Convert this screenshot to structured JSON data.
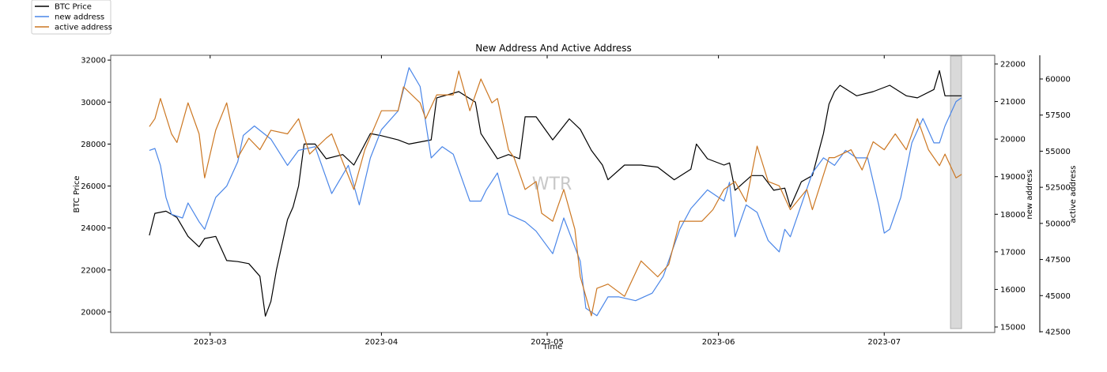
{
  "chart_data": {
    "type": "line",
    "title": "New Address And Active Address",
    "xlabel": "Time",
    "ylabel": "BTC Price",
    "y2label": "new address",
    "y3label": "active address",
    "watermark": "WTR",
    "xlim": [
      "2023-02-11",
      "2023-07-21"
    ],
    "ylim": [
      19020,
      32230
    ],
    "y2lim": [
      14853,
      22231
    ],
    "y3lim": [
      42445,
      61640
    ],
    "x_ticks": [
      "2023-03-01",
      "2023-04-01",
      "2023-05-01",
      "2023-06-01",
      "2023-07-01"
    ],
    "x_tick_labels": [
      "2023-03",
      "2023-04",
      "2023-05",
      "2023-06",
      "2023-07"
    ],
    "y_ticks": [
      20000,
      22000,
      24000,
      26000,
      28000,
      30000,
      32000
    ],
    "y2_ticks": [
      15000,
      16000,
      17000,
      18000,
      19000,
      20000,
      21000,
      22000
    ],
    "y3_ticks": [
      42500,
      45000,
      47500,
      50000,
      52500,
      55000,
      57500,
      60000
    ],
    "grid": false,
    "legend": {
      "placement": "top-left, outside figure",
      "entries": [
        "BTC Price",
        "new address",
        "active address"
      ]
    },
    "highlight": {
      "start": "2023-07-13",
      "end": "2023-07-15",
      "color": "#d9d9d9"
    },
    "series": [
      {
        "name": "BTC Price",
        "axis": "y",
        "color": "#000000",
        "points": [
          [
            "2023-02-18",
            23650
          ],
          [
            "2023-02-19",
            24700
          ],
          [
            "2023-02-21",
            24800
          ],
          [
            "2023-02-23",
            24500
          ],
          [
            "2023-02-25",
            23600
          ],
          [
            "2023-02-27",
            23100
          ],
          [
            "2023-02-28",
            23500
          ],
          [
            "2023-03-02",
            23600
          ],
          [
            "2023-03-04",
            22450
          ],
          [
            "2023-03-06",
            22400
          ],
          [
            "2023-03-08",
            22300
          ],
          [
            "2023-03-10",
            21700
          ],
          [
            "2023-03-11",
            19800
          ],
          [
            "2023-03-12",
            20500
          ],
          [
            "2023-03-13",
            22000
          ],
          [
            "2023-03-15",
            24400
          ],
          [
            "2023-03-16",
            25000
          ],
          [
            "2023-03-17",
            26000
          ],
          [
            "2023-03-18",
            28000
          ],
          [
            "2023-03-20",
            28000
          ],
          [
            "2023-03-22",
            27300
          ],
          [
            "2023-03-25",
            27500
          ],
          [
            "2023-03-27",
            27000
          ],
          [
            "2023-03-30",
            28500
          ],
          [
            "2023-04-01",
            28400
          ],
          [
            "2023-04-04",
            28200
          ],
          [
            "2023-04-06",
            28000
          ],
          [
            "2023-04-10",
            28200
          ],
          [
            "2023-04-11",
            30200
          ],
          [
            "2023-04-15",
            30500
          ],
          [
            "2023-04-18",
            30000
          ],
          [
            "2023-04-19",
            28500
          ],
          [
            "2023-04-22",
            27300
          ],
          [
            "2023-04-24",
            27500
          ],
          [
            "2023-04-26",
            27300
          ],
          [
            "2023-04-27",
            29300
          ],
          [
            "2023-04-29",
            29300
          ],
          [
            "2023-05-02",
            28200
          ],
          [
            "2023-05-05",
            29200
          ],
          [
            "2023-05-07",
            28700
          ],
          [
            "2023-05-09",
            27700
          ],
          [
            "2023-05-11",
            27000
          ],
          [
            "2023-05-12",
            26300
          ],
          [
            "2023-05-15",
            27000
          ],
          [
            "2023-05-18",
            27000
          ],
          [
            "2023-05-21",
            26900
          ],
          [
            "2023-05-24",
            26300
          ],
          [
            "2023-05-27",
            26800
          ],
          [
            "2023-05-28",
            28000
          ],
          [
            "2023-05-30",
            27300
          ],
          [
            "2023-06-02",
            27000
          ],
          [
            "2023-06-03",
            27100
          ],
          [
            "2023-06-04",
            25800
          ],
          [
            "2023-06-07",
            26500
          ],
          [
            "2023-06-09",
            26500
          ],
          [
            "2023-06-11",
            25800
          ],
          [
            "2023-06-13",
            25900
          ],
          [
            "2023-06-14",
            25000
          ],
          [
            "2023-06-16",
            26200
          ],
          [
            "2023-06-18",
            26500
          ],
          [
            "2023-06-19",
            27500
          ],
          [
            "2023-06-20",
            28500
          ],
          [
            "2023-06-21",
            29900
          ],
          [
            "2023-06-22",
            30500
          ],
          [
            "2023-06-23",
            30800
          ],
          [
            "2023-06-26",
            30300
          ],
          [
            "2023-06-29",
            30500
          ],
          [
            "2023-07-02",
            30800
          ],
          [
            "2023-07-05",
            30300
          ],
          [
            "2023-07-07",
            30200
          ],
          [
            "2023-07-10",
            30600
          ],
          [
            "2023-07-11",
            31500
          ],
          [
            "2023-07-12",
            30300
          ],
          [
            "2023-07-15",
            30300
          ]
        ]
      },
      {
        "name": "new address",
        "axis": "y2",
        "color": "#4a86e8",
        "points": [
          [
            "2023-02-18",
            19700
          ],
          [
            "2023-02-19",
            19750
          ],
          [
            "2023-02-20",
            19300
          ],
          [
            "2023-02-21",
            18450
          ],
          [
            "2023-02-22",
            18000
          ],
          [
            "2023-02-24",
            17900
          ],
          [
            "2023-02-25",
            18300
          ],
          [
            "2023-02-27",
            17800
          ],
          [
            "2023-02-28",
            17600
          ],
          [
            "2023-03-02",
            18450
          ],
          [
            "2023-03-04",
            18750
          ],
          [
            "2023-03-06",
            19400
          ],
          [
            "2023-03-07",
            20100
          ],
          [
            "2023-03-09",
            20350
          ],
          [
            "2023-03-12",
            20000
          ],
          [
            "2023-03-15",
            19300
          ],
          [
            "2023-03-17",
            19700
          ],
          [
            "2023-03-20",
            19800
          ],
          [
            "2023-03-23",
            18550
          ],
          [
            "2023-03-26",
            19300
          ],
          [
            "2023-03-28",
            18250
          ],
          [
            "2023-03-30",
            19500
          ],
          [
            "2023-04-01",
            20250
          ],
          [
            "2023-04-04",
            20750
          ],
          [
            "2023-04-06",
            21900
          ],
          [
            "2023-04-08",
            21400
          ],
          [
            "2023-04-10",
            19500
          ],
          [
            "2023-04-12",
            19800
          ],
          [
            "2023-04-14",
            19600
          ],
          [
            "2023-04-17",
            18350
          ],
          [
            "2023-04-19",
            18350
          ],
          [
            "2023-04-20",
            18650
          ],
          [
            "2023-04-22",
            19100
          ],
          [
            "2023-04-24",
            18000
          ],
          [
            "2023-04-27",
            17800
          ],
          [
            "2023-04-29",
            17550
          ],
          [
            "2023-05-02",
            16950
          ],
          [
            "2023-05-04",
            17900
          ],
          [
            "2023-05-07",
            16750
          ],
          [
            "2023-05-08",
            15500
          ],
          [
            "2023-05-10",
            15300
          ],
          [
            "2023-05-12",
            15800
          ],
          [
            "2023-05-14",
            15800
          ],
          [
            "2023-05-17",
            15700
          ],
          [
            "2023-05-20",
            15900
          ],
          [
            "2023-05-22",
            16350
          ],
          [
            "2023-05-25",
            17600
          ],
          [
            "2023-05-27",
            18150
          ],
          [
            "2023-05-30",
            18650
          ],
          [
            "2023-06-02",
            18350
          ],
          [
            "2023-06-03",
            18850
          ],
          [
            "2023-06-04",
            17400
          ],
          [
            "2023-06-06",
            18250
          ],
          [
            "2023-06-08",
            18050
          ],
          [
            "2023-06-10",
            17300
          ],
          [
            "2023-06-12",
            17000
          ],
          [
            "2023-06-13",
            17600
          ],
          [
            "2023-06-14",
            17400
          ],
          [
            "2023-06-16",
            18250
          ],
          [
            "2023-06-18",
            19100
          ],
          [
            "2023-06-20",
            19500
          ],
          [
            "2023-06-22",
            19300
          ],
          [
            "2023-06-24",
            19700
          ],
          [
            "2023-06-26",
            19500
          ],
          [
            "2023-06-28",
            19500
          ],
          [
            "2023-06-30",
            18250
          ],
          [
            "2023-07-01",
            17500
          ],
          [
            "2023-07-02",
            17600
          ],
          [
            "2023-07-04",
            18450
          ],
          [
            "2023-07-06",
            19900
          ],
          [
            "2023-07-08",
            20550
          ],
          [
            "2023-07-10",
            19900
          ],
          [
            "2023-07-11",
            19900
          ],
          [
            "2023-07-12",
            20350
          ],
          [
            "2023-07-14",
            21000
          ],
          [
            "2023-07-15",
            21100
          ]
        ]
      },
      {
        "name": "active address",
        "axis": "y3",
        "color": "#cc7722",
        "points": [
          [
            "2023-02-18",
            56700
          ],
          [
            "2023-02-19",
            57250
          ],
          [
            "2023-02-20",
            58650
          ],
          [
            "2023-02-22",
            56200
          ],
          [
            "2023-02-23",
            55600
          ],
          [
            "2023-02-25",
            58350
          ],
          [
            "2023-02-27",
            56200
          ],
          [
            "2023-02-28",
            53150
          ],
          [
            "2023-03-02",
            56450
          ],
          [
            "2023-03-04",
            58350
          ],
          [
            "2023-03-06",
            54550
          ],
          [
            "2023-03-08",
            55900
          ],
          [
            "2023-03-10",
            55100
          ],
          [
            "2023-03-12",
            56450
          ],
          [
            "2023-03-15",
            56200
          ],
          [
            "2023-03-17",
            57250
          ],
          [
            "2023-03-19",
            54800
          ],
          [
            "2023-03-22",
            55900
          ],
          [
            "2023-03-23",
            56200
          ],
          [
            "2023-03-25",
            54250
          ],
          [
            "2023-03-27",
            52350
          ],
          [
            "2023-03-29",
            55100
          ],
          [
            "2023-04-01",
            57800
          ],
          [
            "2023-04-04",
            57800
          ],
          [
            "2023-04-05",
            59450
          ],
          [
            "2023-04-08",
            58350
          ],
          [
            "2023-04-09",
            57250
          ],
          [
            "2023-04-11",
            58900
          ],
          [
            "2023-04-14",
            58900
          ],
          [
            "2023-04-15",
            60550
          ],
          [
            "2023-04-17",
            57800
          ],
          [
            "2023-04-19",
            60000
          ],
          [
            "2023-04-21",
            58350
          ],
          [
            "2023-04-22",
            58650
          ],
          [
            "2023-04-24",
            55100
          ],
          [
            "2023-04-25",
            54550
          ],
          [
            "2023-04-27",
            52350
          ],
          [
            "2023-04-29",
            52900
          ],
          [
            "2023-04-30",
            50700
          ],
          [
            "2023-05-02",
            50150
          ],
          [
            "2023-05-04",
            52350
          ],
          [
            "2023-05-06",
            49600
          ],
          [
            "2023-05-07",
            46300
          ],
          [
            "2023-05-09",
            43600
          ],
          [
            "2023-05-10",
            45500
          ],
          [
            "2023-05-12",
            45800
          ],
          [
            "2023-05-15",
            44950
          ],
          [
            "2023-05-18",
            47400
          ],
          [
            "2023-05-21",
            46300
          ],
          [
            "2023-05-23",
            47150
          ],
          [
            "2023-05-25",
            50150
          ],
          [
            "2023-05-26",
            50150
          ],
          [
            "2023-05-29",
            50150
          ],
          [
            "2023-05-31",
            50950
          ],
          [
            "2023-06-02",
            52350
          ],
          [
            "2023-06-04",
            52900
          ],
          [
            "2023-06-06",
            51500
          ],
          [
            "2023-06-08",
            55350
          ],
          [
            "2023-06-10",
            52900
          ],
          [
            "2023-06-12",
            52600
          ],
          [
            "2023-06-14",
            50950
          ],
          [
            "2023-06-17",
            52350
          ],
          [
            "2023-06-18",
            50950
          ],
          [
            "2023-06-21",
            54550
          ],
          [
            "2023-06-22",
            54550
          ],
          [
            "2023-06-25",
            55100
          ],
          [
            "2023-06-27",
            53700
          ],
          [
            "2023-06-29",
            55650
          ],
          [
            "2023-07-01",
            55100
          ],
          [
            "2023-07-03",
            56200
          ],
          [
            "2023-07-05",
            55100
          ],
          [
            "2023-07-07",
            57250
          ],
          [
            "2023-07-09",
            55100
          ],
          [
            "2023-07-11",
            54000
          ],
          [
            "2023-07-12",
            54800
          ],
          [
            "2023-07-14",
            53150
          ],
          [
            "2023-07-15",
            53400
          ]
        ]
      }
    ]
  }
}
